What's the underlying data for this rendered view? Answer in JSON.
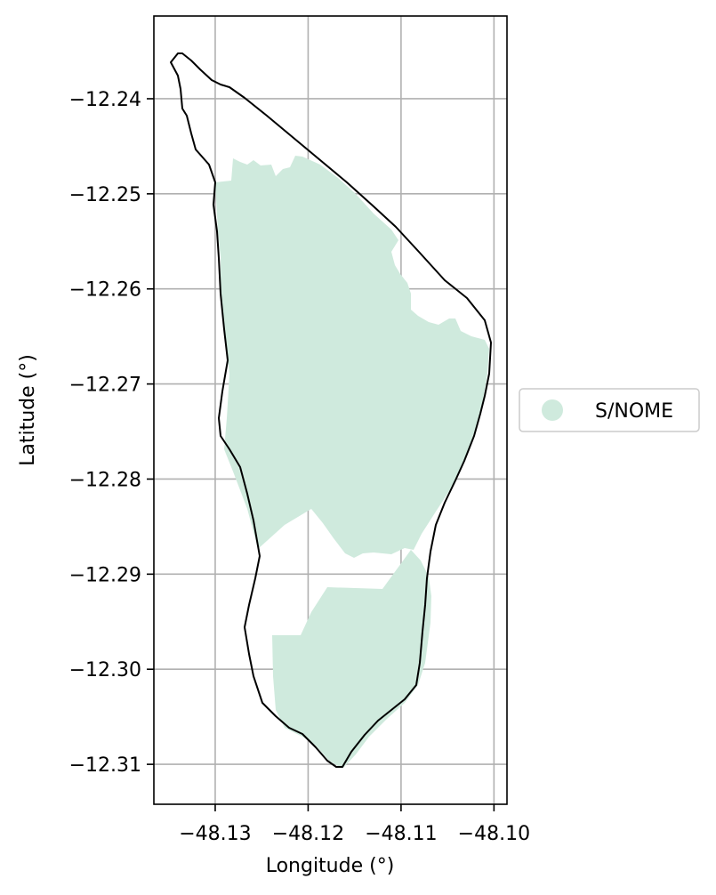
{
  "map": {
    "xlabel": "Longitude (°)",
    "ylabel": "Latitude (°)",
    "xlim": [
      -48.1366,
      -48.0986
    ],
    "ylim": [
      -12.3142,
      -12.2313
    ],
    "grid": true,
    "legend_placement": "right, outside plot",
    "x_ticks": [
      {
        "value": -48.13,
        "label": "−48.13"
      },
      {
        "value": -48.12,
        "label": "−48.12"
      },
      {
        "value": -48.11,
        "label": "−48.11"
      },
      {
        "value": -48.1,
        "label": "−48.10"
      }
    ],
    "y_ticks": [
      {
        "value": -12.24,
        "label": "−12.24"
      },
      {
        "value": -12.25,
        "label": "−12.25"
      },
      {
        "value": -12.26,
        "label": "−12.26"
      },
      {
        "value": -12.27,
        "label": "−12.27"
      },
      {
        "value": -12.28,
        "label": "−12.28"
      },
      {
        "value": -12.29,
        "label": "−12.29"
      },
      {
        "value": -12.3,
        "label": "−12.30"
      },
      {
        "value": -12.31,
        "label": "−12.31"
      }
    ],
    "legend": [
      {
        "label": "S/NOME",
        "color": "#cfeadd"
      }
    ],
    "colors": {
      "fill": "#cfeadd",
      "boundary": "#000000",
      "grid": "#b0b0b0"
    }
  }
}
